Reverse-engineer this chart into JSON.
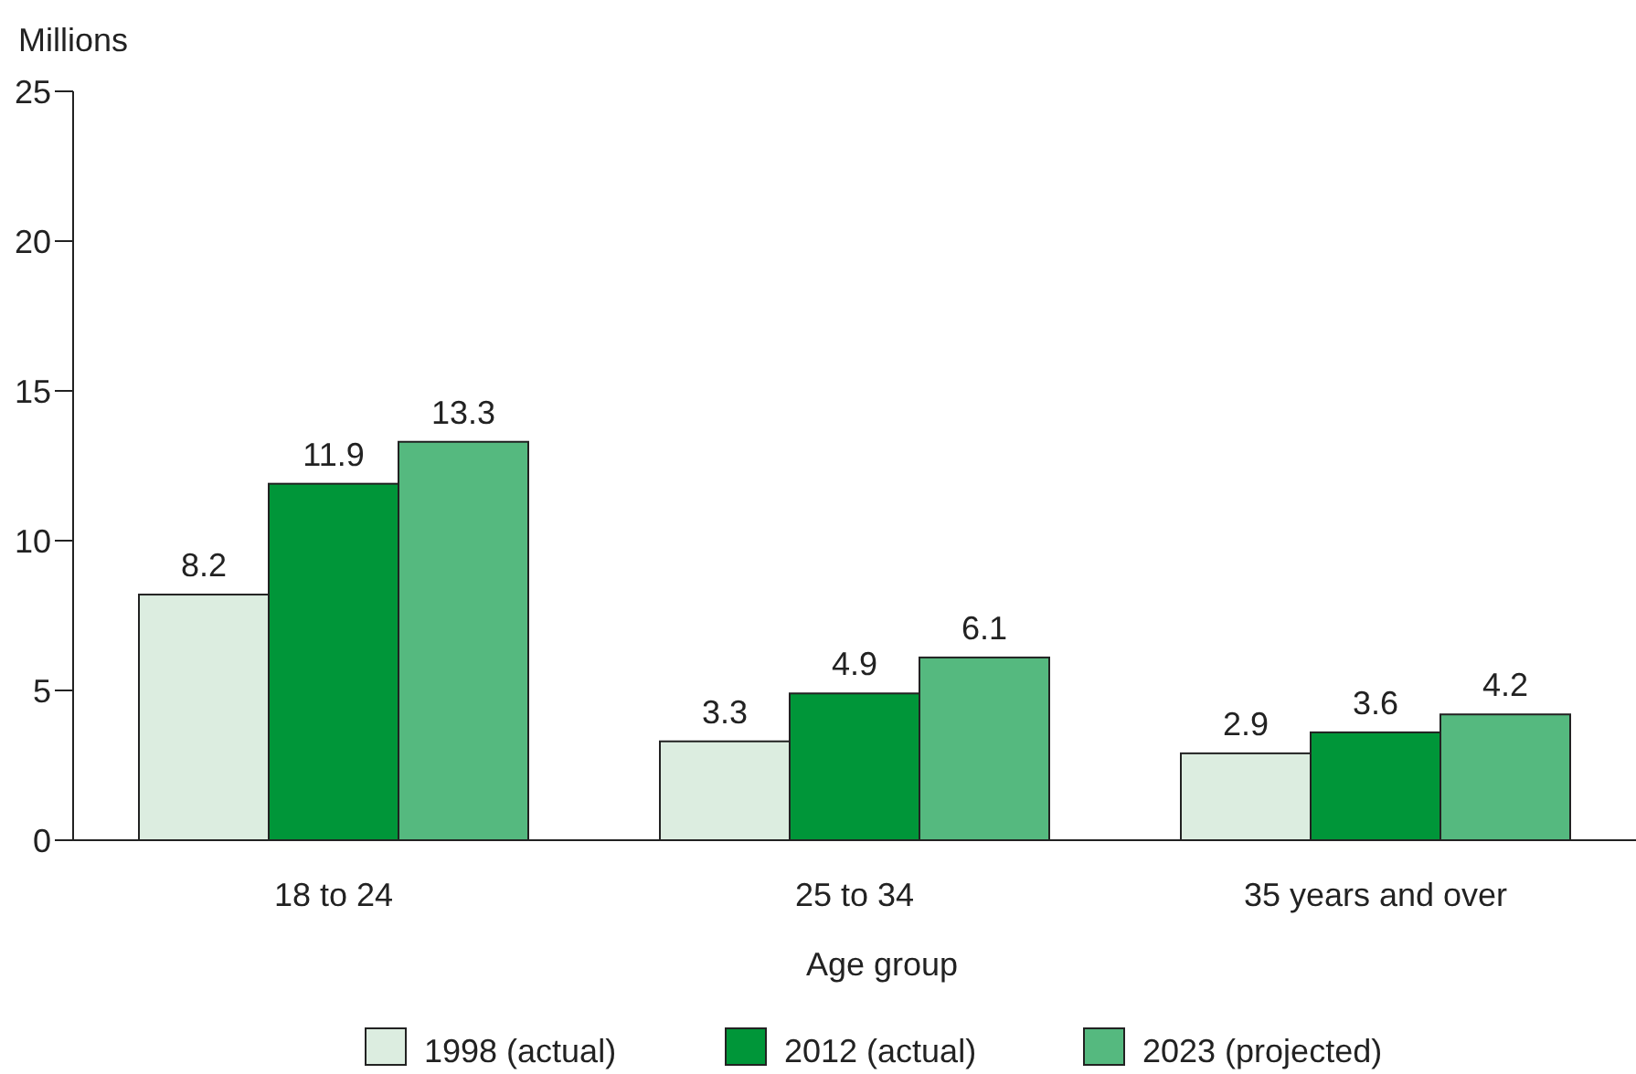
{
  "chart_data": {
    "type": "bar",
    "ylabel": "Millions",
    "xlabel": "Age group",
    "categories": [
      "18 to 24",
      "25 to 34",
      "35 years and over"
    ],
    "series": [
      {
        "name": "1998 (actual)",
        "color": "#dcede0",
        "values": [
          8.2,
          3.3,
          2.9
        ]
      },
      {
        "name": "2012 (actual)",
        "color": "#009639",
        "values": [
          11.9,
          4.9,
          3.6
        ]
      },
      {
        "name": "2023 (projected)",
        "color": "#55b97f",
        "values": [
          13.3,
          6.1,
          4.2
        ]
      }
    ],
    "ylim": [
      0,
      25
    ],
    "yticks": [
      0,
      5,
      10,
      15,
      20,
      25
    ],
    "data_labels": true,
    "legend": "bottom",
    "grid": false
  }
}
